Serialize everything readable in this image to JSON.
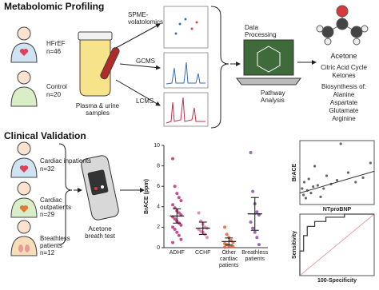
{
  "profiling": {
    "title": "Metabolomic Profiling",
    "groups": [
      {
        "label": "HFrEF",
        "n": "n=46"
      },
      {
        "label": "Control",
        "n": "n=20"
      }
    ],
    "samples": "Plasma & urine samples",
    "methods": [
      "SPME-volatolomics",
      "GCMS",
      "LCMS"
    ],
    "processing": "Data Processing",
    "analysis": "Pathway Analysis",
    "results": [
      "Acetone",
      "Citric Acid Cycle",
      "Ketones",
      "Biosynthesis of:",
      "Alanine",
      "Aspartate",
      "Glutamate",
      "Arginine"
    ]
  },
  "validation": {
    "title": "Clinical Validation",
    "groups": [
      {
        "label": "Cardiac inpatients",
        "n": "n=32"
      },
      {
        "label": "Cardiac outpatients",
        "n": "n=29"
      },
      {
        "label": "Breathless patients",
        "n": "n=12"
      }
    ],
    "device": "Acetone breath test"
  },
  "chart_data": [
    {
      "type": "strip",
      "y_label": "BrACE (ppm)",
      "categories": [
        "ADHF",
        "CCHF",
        "Other cardiac patients",
        "Breathless patients"
      ],
      "colors": [
        "#c2307a",
        "#e07aa8",
        "#e0603a",
        "#8a4fa8"
      ],
      "points": [
        [
          8.7,
          6.0,
          5.3,
          4.9,
          4.6,
          4.2,
          3.9,
          3.6,
          3.4,
          3.2,
          3.0,
          2.8,
          2.6,
          2.4,
          2.2,
          2.0,
          1.8,
          1.5,
          1.2,
          0.8,
          0.5
        ],
        [
          3.4,
          2.6,
          2.3,
          2.0,
          1.9,
          1.8,
          1.6,
          1.5,
          1.3,
          1.0
        ],
        [
          2.0,
          1.3,
          1.0,
          0.7,
          0.5,
          0.4,
          0.3,
          0.2,
          0.1,
          0.1,
          0.05
        ],
        [
          9.3,
          5.5,
          4.3,
          3.5,
          3.2,
          2.5,
          1.9,
          1.5,
          1.0,
          0.3
        ]
      ],
      "means": [
        3.1,
        1.9,
        0.6,
        3.3
      ],
      "errors": [
        0.7,
        0.6,
        0.35,
        1.6
      ],
      "ylim": [
        0,
        10
      ],
      "yticks": [
        0,
        2,
        4,
        6,
        8,
        10
      ]
    },
    {
      "type": "scatter",
      "x_label": "NTproBNP",
      "y_label": "BrACE",
      "x": [
        0.3,
        0.5,
        0.6,
        0.8,
        1,
        1.2,
        1.5,
        1.8,
        2,
        2.4,
        2.8,
        3.2,
        3.6,
        4.2,
        5,
        5.5,
        6.5,
        7.5,
        8.5,
        9.5
      ],
      "y": [
        2.5,
        1.5,
        3.5,
        1,
        2.2,
        4,
        1.8,
        2.8,
        6,
        3,
        1.2,
        2.5,
        4.5,
        3.2,
        3.8,
        9.5,
        5,
        3.5,
        4.2,
        6.5
      ],
      "fit": {
        "x": [
          0,
          10
        ],
        "y": [
          1.8,
          5.2
        ]
      },
      "xlim": [
        0,
        10
      ],
      "ylim": [
        0,
        10
      ],
      "color": "#666"
    },
    {
      "type": "line",
      "x_label": "100-Specificity",
      "y_label": "Sensitivity",
      "x": [
        0,
        0,
        5,
        5,
        10,
        10,
        20,
        20,
        35,
        35,
        60,
        60,
        100
      ],
      "y": [
        0,
        40,
        40,
        65,
        65,
        80,
        80,
        88,
        88,
        95,
        95,
        100,
        100
      ],
      "xlim": [
        0,
        100
      ],
      "ylim": [
        0,
        100
      ],
      "color": "#444"
    }
  ]
}
